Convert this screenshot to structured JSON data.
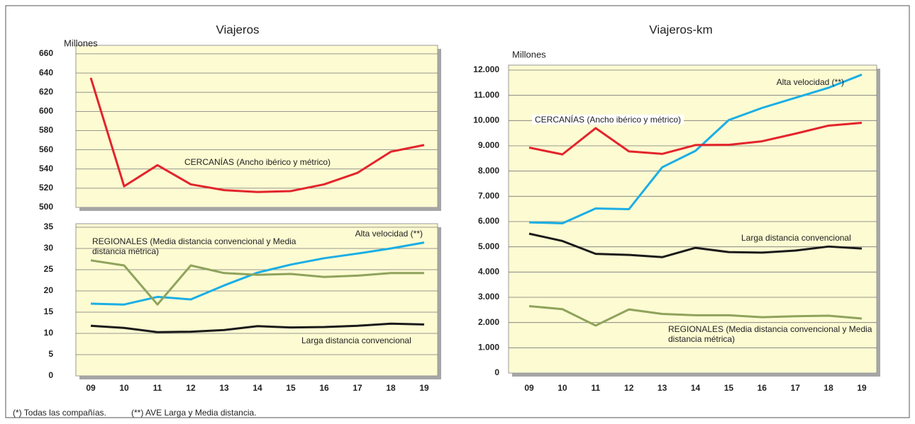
{
  "chart_data": [
    {
      "type": "line",
      "title": "Viajeros",
      "y_label": "Millones",
      "ylim": [
        500,
        660
      ],
      "yticks": [
        500,
        520,
        540,
        560,
        580,
        600,
        620,
        640,
        660
      ],
      "grid": true,
      "series": [
        {
          "name": "CERCANÍAS (Ancho ibérico y métrico)",
          "color": "#e3242b",
          "values": [
            635,
            522,
            544,
            524,
            518,
            516,
            517,
            524,
            536,
            558,
            565
          ]
        }
      ]
    },
    {
      "type": "line",
      "categories": [
        "09",
        "10",
        "11",
        "12",
        "13",
        "14",
        "15",
        "16",
        "17",
        "18",
        "19"
      ],
      "ylim": [
        0,
        35
      ],
      "yticks": [
        0,
        5,
        10,
        15,
        20,
        25,
        30,
        35
      ],
      "grid": true,
      "series": [
        {
          "name": "Alta velocidad (**)",
          "color": "#1aaee5",
          "values": [
            17.0,
            16.8,
            18.6,
            18.0,
            21.3,
            24.3,
            26.2,
            27.7,
            28.8,
            30.0,
            31.4
          ]
        },
        {
          "name": "REGIONALES (Media distancia convencional y Media distancia métrica)",
          "color": "#8fa35c",
          "values": [
            27.2,
            26.0,
            16.8,
            26.0,
            24.2,
            23.8,
            24.0,
            23.3,
            23.6,
            24.2,
            24.2
          ]
        },
        {
          "name": "Larga distancia convencional",
          "color": "#1a1a1a",
          "values": [
            11.8,
            11.3,
            10.3,
            10.4,
            10.8,
            11.7,
            11.4,
            11.5,
            11.8,
            12.3,
            12.1
          ]
        }
      ]
    },
    {
      "type": "line",
      "title": "Viajeros-km",
      "y_label": "Millones",
      "categories": [
        "09",
        "10",
        "11",
        "12",
        "13",
        "14",
        "15",
        "16",
        "17",
        "18",
        "19"
      ],
      "ylim": [
        0,
        12000
      ],
      "yticks": [
        0,
        {
          "value": 1000,
          "label": "1.000"
        },
        {
          "value": 2000,
          "label": "2.000"
        },
        {
          "value": 3000,
          "label": "3.000"
        },
        {
          "value": 4000,
          "label": "4.000"
        },
        {
          "value": 5000,
          "label": "5.000"
        },
        {
          "value": 6000,
          "label": "6.000"
        },
        {
          "value": 7000,
          "label": "7.000"
        },
        {
          "value": 8000,
          "label": "8.000"
        },
        {
          "value": 9000,
          "label": "9.000"
        },
        {
          "value": 10000,
          "label": "10.000"
        },
        {
          "value": 11000,
          "label": "11.000"
        },
        {
          "value": 12000,
          "label": "12.000"
        }
      ],
      "grid": true,
      "series": [
        {
          "name": "Alta velocidad (**)",
          "color": "#1aaee5",
          "values": [
            5970,
            5930,
            6520,
            6490,
            8150,
            8800,
            10020,
            10500,
            10900,
            11300,
            11820
          ]
        },
        {
          "name": "CERCANÍAS (Ancho ibérico y métrico)",
          "color": "#e3242b",
          "values": [
            8930,
            8660,
            9700,
            8780,
            8680,
            9030,
            9040,
            9180,
            9480,
            9800,
            9910
          ]
        },
        {
          "name": "Larga distancia convencional",
          "color": "#1a1a1a",
          "values": [
            5520,
            5230,
            4720,
            4680,
            4590,
            4960,
            4790,
            4770,
            4850,
            5010,
            4930
          ]
        },
        {
          "name": "REGIONALES (Media distancia convencional y Media distancia métrica)",
          "color": "#8fa35c",
          "values": [
            2650,
            2530,
            1880,
            2520,
            2340,
            2290,
            2290,
            2210,
            2250,
            2270,
            2160
          ]
        }
      ]
    }
  ],
  "notes": [
    "(*) Todas las compañías.",
    "(**) AVE Larga y Media distancia."
  ]
}
